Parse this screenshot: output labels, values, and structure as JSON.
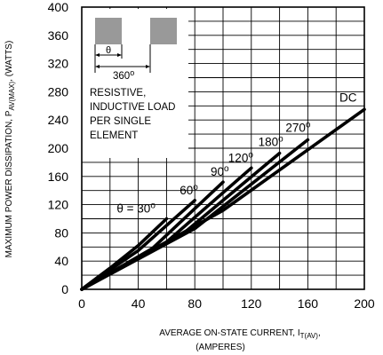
{
  "chart_data": {
    "type": "line",
    "xlabel": "AVERAGE ON-STATE CURRENT, I",
    "xlabel_sub": "T(AV)",
    "xlabel_tail": ",",
    "xlabel_units": "(AMPERES)",
    "ylabel": "MAXIMUM POWER DISSIPATION, P",
    "ylabel_sub": "AV(MAX)",
    "ylabel_tail": ", (WATTS)",
    "xlim": [
      0,
      200
    ],
    "ylim": [
      0,
      400
    ],
    "x_ticks": [
      "0",
      "40",
      "80",
      "120",
      "160",
      "200"
    ],
    "y_ticks": [
      "0",
      "40",
      "80",
      "120",
      "160",
      "200",
      "240",
      "280",
      "320",
      "360",
      "400"
    ],
    "grid": true,
    "series": [
      {
        "name": "θ = 30°",
        "label_main": "θ = 30",
        "label_sup": "o",
        "x": [
          0,
          20,
          40,
          60
        ],
        "y": [
          0,
          30,
          62,
          100
        ]
      },
      {
        "name": "60°",
        "label_main": "60",
        "label_sup": "o",
        "x": [
          0,
          40,
          80
        ],
        "y": [
          0,
          55,
          126
        ]
      },
      {
        "name": "90°",
        "label_main": "90",
        "label_sup": "o",
        "x": [
          0,
          50,
          100
        ],
        "y": [
          0,
          58,
          152
        ]
      },
      {
        "name": "120°",
        "label_main": "120",
        "label_sup": "o",
        "x": [
          0,
          60,
          120
        ],
        "y": [
          0,
          67,
          172
        ]
      },
      {
        "name": "180°",
        "label_main": "180",
        "label_sup": "o",
        "x": [
          0,
          70,
          140
        ],
        "y": [
          0,
          76,
          193
        ]
      },
      {
        "name": "270°",
        "label_main": "270",
        "label_sup": "o",
        "x": [
          0,
          80,
          160
        ],
        "y": [
          0,
          86,
          212
        ]
      },
      {
        "name": "DC",
        "label_main": "DC",
        "label_sup": "",
        "x": [
          0,
          100,
          200
        ],
        "y": [
          0,
          112,
          255
        ]
      }
    ],
    "annotation": {
      "lines": [
        "RESISTIVE,",
        "INDUCTIVE LOAD",
        "PER SINGLE",
        "ELEMENT"
      ],
      "theta_label": "θ",
      "period_label": "360",
      "period_sup": "o"
    }
  }
}
